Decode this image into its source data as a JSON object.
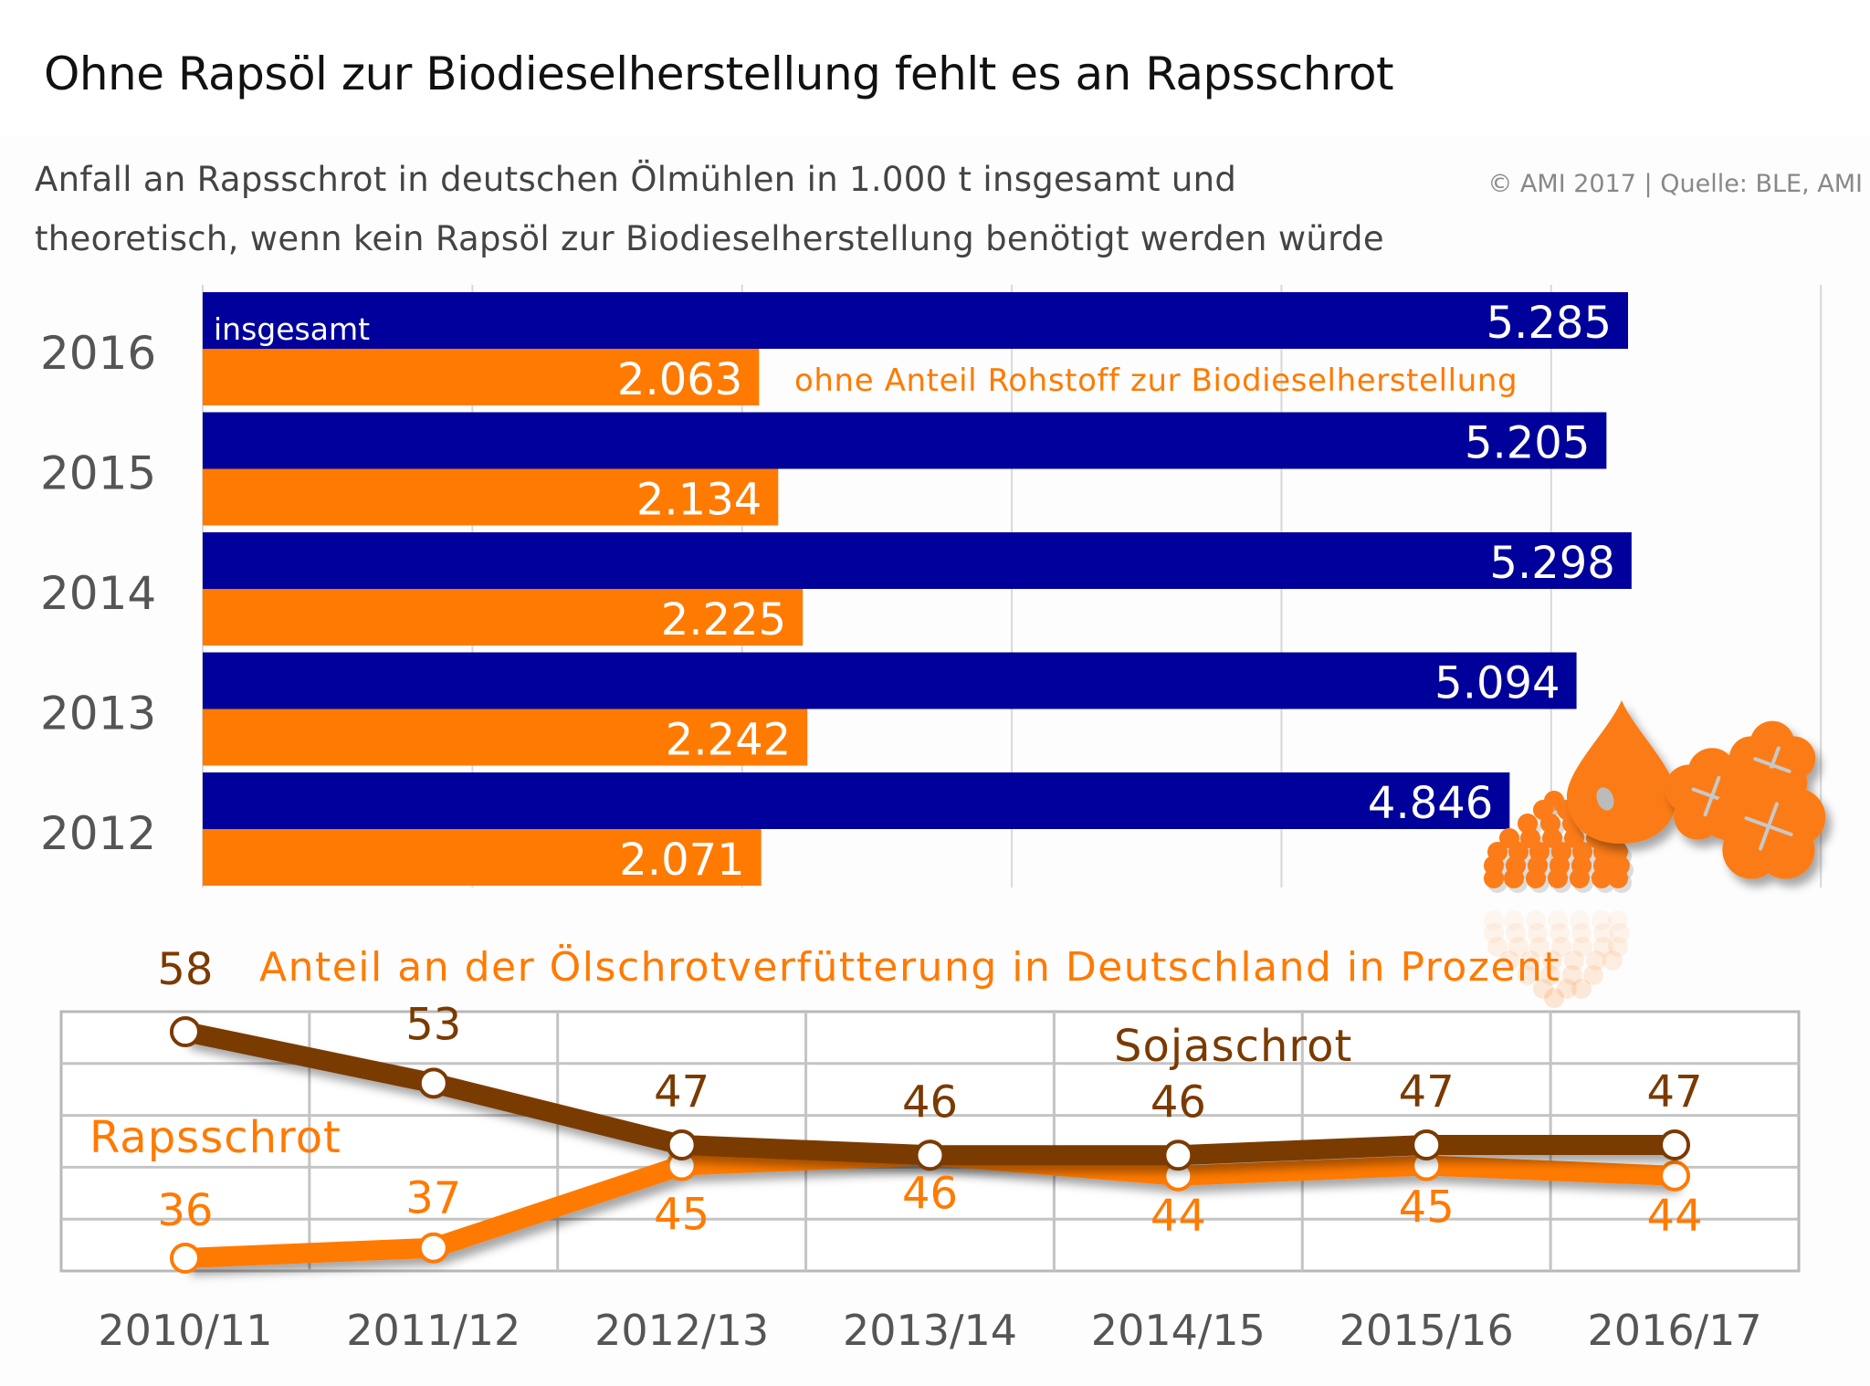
{
  "title": "Ohne Rapsöl zur Biodieselherstellung fehlt es an Rapsschrot",
  "subtitle_line1": "Anfall an Rapsschrot in deutschen Ölmühlen in 1.000 t insgesamt und",
  "subtitle_line2": "theoretisch, wenn kein Rapsöl zur Biodieselherstellung benötigt werden würde",
  "copyright": "© AMI 2017 | Quelle: BLE, AMI",
  "colors": {
    "navy": "#00009a",
    "orange": "#ff7a00",
    "brown": "#7a3a00",
    "grid": "#c0c0c0",
    "axis_text": "#555555"
  },
  "icons": [
    "seeds-pile-icon",
    "oil-drop-icon",
    "rapeseed-flowers-icon"
  ],
  "chart_data": [
    {
      "type": "bar",
      "orientation": "horizontal",
      "title": "Anfall an Rapsschrot in deutschen Ölmühlen in 1.000 t",
      "unit": "1.000 t",
      "categories": [
        "2016",
        "2015",
        "2014",
        "2013",
        "2012"
      ],
      "series": [
        {
          "name": "insgesamt",
          "color": "#00009a",
          "values": [
            5285,
            5205,
            5298,
            5094,
            4846
          ],
          "labels": [
            "5.285",
            "5.205",
            "5.298",
            "5.094",
            "4.846"
          ]
        },
        {
          "name": "ohne Anteil Rohstoff zur Biodieselherstellung",
          "color": "#ff7a00",
          "values": [
            2063,
            2134,
            2225,
            2242,
            2071
          ],
          "labels": [
            "2.063",
            "2.134",
            "2.225",
            "2.242",
            "2.071"
          ]
        }
      ],
      "xlim": [
        0,
        6000
      ],
      "grid": true,
      "legend": "inline"
    },
    {
      "type": "line",
      "title": "Anteil an der Ölschrotverfütterung in Deutschland in Prozent",
      "x": [
        "2010/11",
        "2011/12",
        "2012/13",
        "2013/14",
        "2014/15",
        "2015/16",
        "2016/17"
      ],
      "series": [
        {
          "name": "Sojaschrot",
          "color": "#7a3a00",
          "values": [
            58,
            53,
            47,
            46,
            46,
            47,
            47
          ]
        },
        {
          "name": "Rapsschrot",
          "color": "#ff7a00",
          "values": [
            36,
            37,
            45,
            46,
            44,
            45,
            44
          ]
        }
      ],
      "ylim": [
        35,
        60
      ],
      "grid": true,
      "legend": "inline"
    }
  ]
}
